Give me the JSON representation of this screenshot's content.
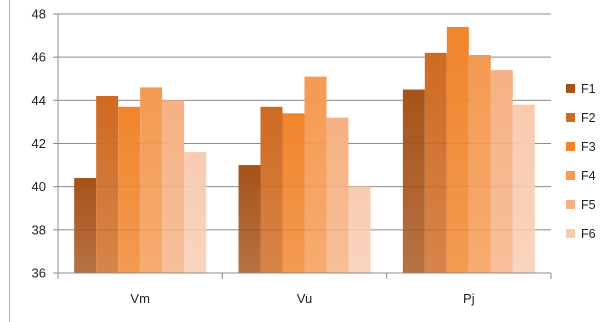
{
  "chart_data": {
    "type": "bar",
    "categories": [
      "Vm",
      "Vu",
      "Pj"
    ],
    "series": [
      {
        "name": "F1",
        "color": "#a6531a",
        "values": [
          40.4,
          41.0,
          44.5
        ]
      },
      {
        "name": "F2",
        "color": "#cf6a22",
        "values": [
          44.2,
          43.7,
          46.2
        ]
      },
      {
        "name": "F3",
        "color": "#f0852c",
        "values": [
          43.7,
          43.4,
          47.4
        ]
      },
      {
        "name": "F4",
        "color": "#f49a52",
        "values": [
          44.6,
          45.1,
          46.1
        ]
      },
      {
        "name": "F5",
        "color": "#f5b183",
        "values": [
          44.0,
          43.2,
          45.4
        ]
      },
      {
        "name": "F6",
        "color": "#f8cbb0",
        "values": [
          41.6,
          40.0,
          43.8
        ]
      }
    ],
    "ylim": [
      36,
      48
    ],
    "yticks": [
      36,
      38,
      40,
      42,
      44,
      46,
      48
    ],
    "grid": true,
    "legend": "right"
  }
}
